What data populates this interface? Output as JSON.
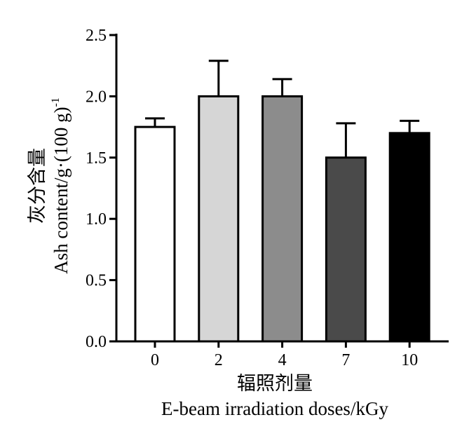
{
  "chart_data": {
    "type": "bar",
    "categories": [
      "0",
      "2",
      "4",
      "7",
      "10"
    ],
    "values": [
      1.75,
      2.0,
      2.0,
      1.5,
      1.7
    ],
    "error_plus": [
      0.07,
      0.29,
      0.14,
      0.28,
      0.1
    ],
    "bar_colors": [
      "#ffffff",
      "#d6d6d6",
      "#8c8c8c",
      "#4a4a4a",
      "#000000"
    ],
    "ylim": [
      0,
      2.5
    ],
    "yticks": [
      "0.0",
      "0.5",
      "1.0",
      "1.5",
      "2.0",
      "2.5"
    ],
    "ylabel_cn": "灰分含量",
    "ylabel_en": "Ash  content/g·(100  g)",
    "ylabel_sup": "-1",
    "xlabel_cn": "辐照剂量",
    "xlabel_en": "E-beam  irradiation  doses/kGy",
    "grid": false,
    "legend": "none"
  }
}
